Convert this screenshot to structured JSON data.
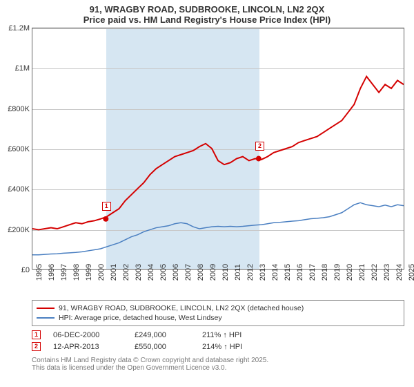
{
  "title": "91, WRAGBY ROAD, SUDBROOKE, LINCOLN, LN2 2QX",
  "subtitle": "Price paid vs. HM Land Registry's House Price Index (HPI)",
  "chart": {
    "type": "line",
    "background_color": "#ffffff",
    "grid_color": "#c8c8c8",
    "border_color": "#646464",
    "shaded_band_color": "#d6e6f2",
    "ylim": [
      0,
      1200000
    ],
    "ytick_step": 200000,
    "yticks": [
      "£0",
      "£200K",
      "£400K",
      "£600K",
      "£800K",
      "£1M",
      "£1.2M"
    ],
    "x_start_year": 1995,
    "x_end_year": 2025,
    "xticks": [
      1995,
      1996,
      1997,
      1998,
      1999,
      2000,
      2001,
      2002,
      2003,
      2004,
      2005,
      2006,
      2007,
      2008,
      2009,
      2010,
      2011,
      2012,
      2013,
      2014,
      2015,
      2016,
      2017,
      2018,
      2019,
      2020,
      2021,
      2022,
      2023,
      2024,
      2025
    ],
    "shaded_start_year": 2000.93,
    "shaded_end_year": 2013.28,
    "series": [
      {
        "name": "91, WRAGBY ROAD, SUDBROOKE, LINCOLN, LN2 2QX (detached house)",
        "color": "#d40000",
        "line_width": 2,
        "y": [
          200000,
          195000,
          200000,
          205000,
          200000,
          210000,
          220000,
          230000,
          225000,
          235000,
          240000,
          249000,
          260000,
          280000,
          300000,
          340000,
          370000,
          400000,
          430000,
          470000,
          500000,
          520000,
          540000,
          560000,
          570000,
          580000,
          590000,
          610000,
          625000,
          600000,
          540000,
          520000,
          530000,
          550000,
          560000,
          540000,
          550000,
          545000,
          560000,
          580000,
          590000,
          600000,
          610000,
          630000,
          640000,
          650000,
          660000,
          680000,
          700000,
          720000,
          740000,
          780000,
          820000,
          900000,
          960000,
          920000,
          880000,
          920000,
          900000,
          940000,
          920000
        ]
      },
      {
        "name": "HPI: Average price, detached house, West Lindsey",
        "color": "#4a7fc1",
        "line_width": 1.5,
        "y": [
          70000,
          70000,
          72000,
          74000,
          75000,
          78000,
          80000,
          82000,
          85000,
          90000,
          95000,
          100000,
          110000,
          120000,
          130000,
          145000,
          160000,
          170000,
          185000,
          195000,
          205000,
          210000,
          215000,
          225000,
          230000,
          225000,
          210000,
          200000,
          205000,
          210000,
          212000,
          210000,
          212000,
          210000,
          212000,
          215000,
          218000,
          220000,
          225000,
          230000,
          232000,
          235000,
          238000,
          240000,
          245000,
          250000,
          252000,
          255000,
          260000,
          270000,
          280000,
          300000,
          320000,
          330000,
          320000,
          315000,
          310000,
          318000,
          310000,
          320000,
          315000
        ]
      }
    ],
    "events": [
      {
        "n": "1",
        "year": 2000.93,
        "value": 249000,
        "date": "06-DEC-2000",
        "price": "£249,000",
        "hpi": "211% ↑ HPI",
        "color": "#d40000"
      },
      {
        "n": "2",
        "year": 2013.28,
        "value": 550000,
        "date": "12-APR-2013",
        "price": "£550,000",
        "hpi": "214% ↑ HPI",
        "color": "#d40000"
      }
    ]
  },
  "legend_label_1": "91, WRAGBY ROAD, SUDBROOKE, LINCOLN, LN2 2QX (detached house)",
  "legend_label_2": "HPI: Average price, detached house, West Lindsey",
  "footnote_1": "Contains HM Land Registry data © Crown copyright and database right 2025.",
  "footnote_2": "This data is licensed under the Open Government Licence v3.0."
}
